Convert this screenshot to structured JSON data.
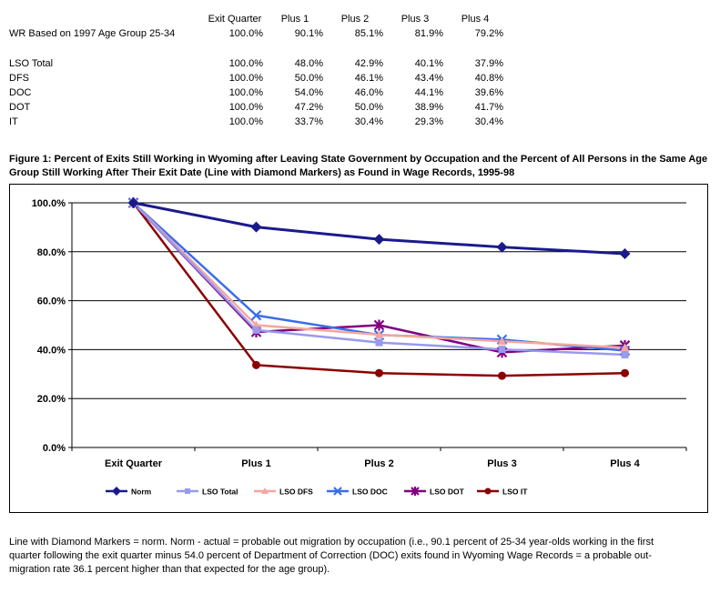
{
  "table": {
    "headers": [
      "",
      "Exit Quarter",
      "Plus 1",
      "Plus 2",
      "Plus 3",
      "Plus 4"
    ],
    "rows": [
      {
        "label": "WR Based on 1997 Age Group 25-34",
        "values": [
          "100.0%",
          "90.1%",
          "85.1%",
          "81.9%",
          "79.2%"
        ]
      },
      {
        "label": "LSO Total",
        "values": [
          "100.0%",
          "48.0%",
          "42.9%",
          "40.1%",
          "37.9%"
        ]
      },
      {
        "label": "DFS",
        "values": [
          "100.0%",
          "50.0%",
          "46.1%",
          "43.4%",
          "40.8%"
        ]
      },
      {
        "label": "DOC",
        "values": [
          "100.0%",
          "54.0%",
          "46.0%",
          "44.1%",
          "39.6%"
        ]
      },
      {
        "label": "DOT",
        "values": [
          "100.0%",
          "47.2%",
          "50.0%",
          "38.9%",
          "41.7%"
        ]
      },
      {
        "label": "IT",
        "values": [
          "100.0%",
          "33.7%",
          "30.4%",
          "29.3%",
          "30.4%"
        ]
      }
    ]
  },
  "caption": "Figure 1:  Percent of Exits Still Working in Wyoming after Leaving State Government by Occupation and the Percent of All Persons in the Same Age Group Still Working After Their Exit Date (Line with Diamond Markers) as Found in Wage Records, 1995-98",
  "footnote": "Line with Diamond Markers = norm.  Norm - actual = probable out migration by occupation (i.e., 90.1 percent of 25-34 year-olds working in the first quarter following the exit quarter minus 54.0 percent of Department of Correction (DOC) exits found in Wyoming Wage Records = a probable out-migration rate 36.1 percent higher than that expected for the age group).",
  "chart_data": {
    "type": "line",
    "categories": [
      "Exit Quarter",
      "Plus 1",
      "Plus 2",
      "Plus 3",
      "Plus 4"
    ],
    "ylim": [
      0,
      100
    ],
    "yticks": [
      0,
      20,
      40,
      60,
      80,
      100
    ],
    "ytick_labels": [
      "0.0%",
      "20.0%",
      "40.0%",
      "60.0%",
      "80.0%",
      "100.0%"
    ],
    "grid": true,
    "legend_position": "bottom",
    "series": [
      {
        "name": "Norm",
        "values": [
          100.0,
          90.1,
          85.1,
          81.9,
          79.2
        ],
        "color": "#1a1a8c",
        "marker": "diamond"
      },
      {
        "name": "LSO Total",
        "values": [
          100.0,
          48.0,
          42.9,
          40.1,
          37.9
        ],
        "color": "#9999ee",
        "marker": "square"
      },
      {
        "name": "LSO DFS",
        "values": [
          100.0,
          50.0,
          46.1,
          43.4,
          40.8
        ],
        "color": "#f4a6a0",
        "marker": "triangle"
      },
      {
        "name": "LSO DOC",
        "values": [
          100.0,
          54.0,
          46.0,
          44.1,
          39.6
        ],
        "color": "#3a6ee8",
        "marker": "x"
      },
      {
        "name": "LSO DOT",
        "values": [
          100.0,
          47.2,
          50.0,
          38.9,
          41.7
        ],
        "color": "#800080",
        "marker": "star"
      },
      {
        "name": "LSO IT",
        "values": [
          100.0,
          33.7,
          30.4,
          29.3,
          30.4
        ],
        "color": "#8b0000",
        "marker": "circle"
      }
    ]
  }
}
